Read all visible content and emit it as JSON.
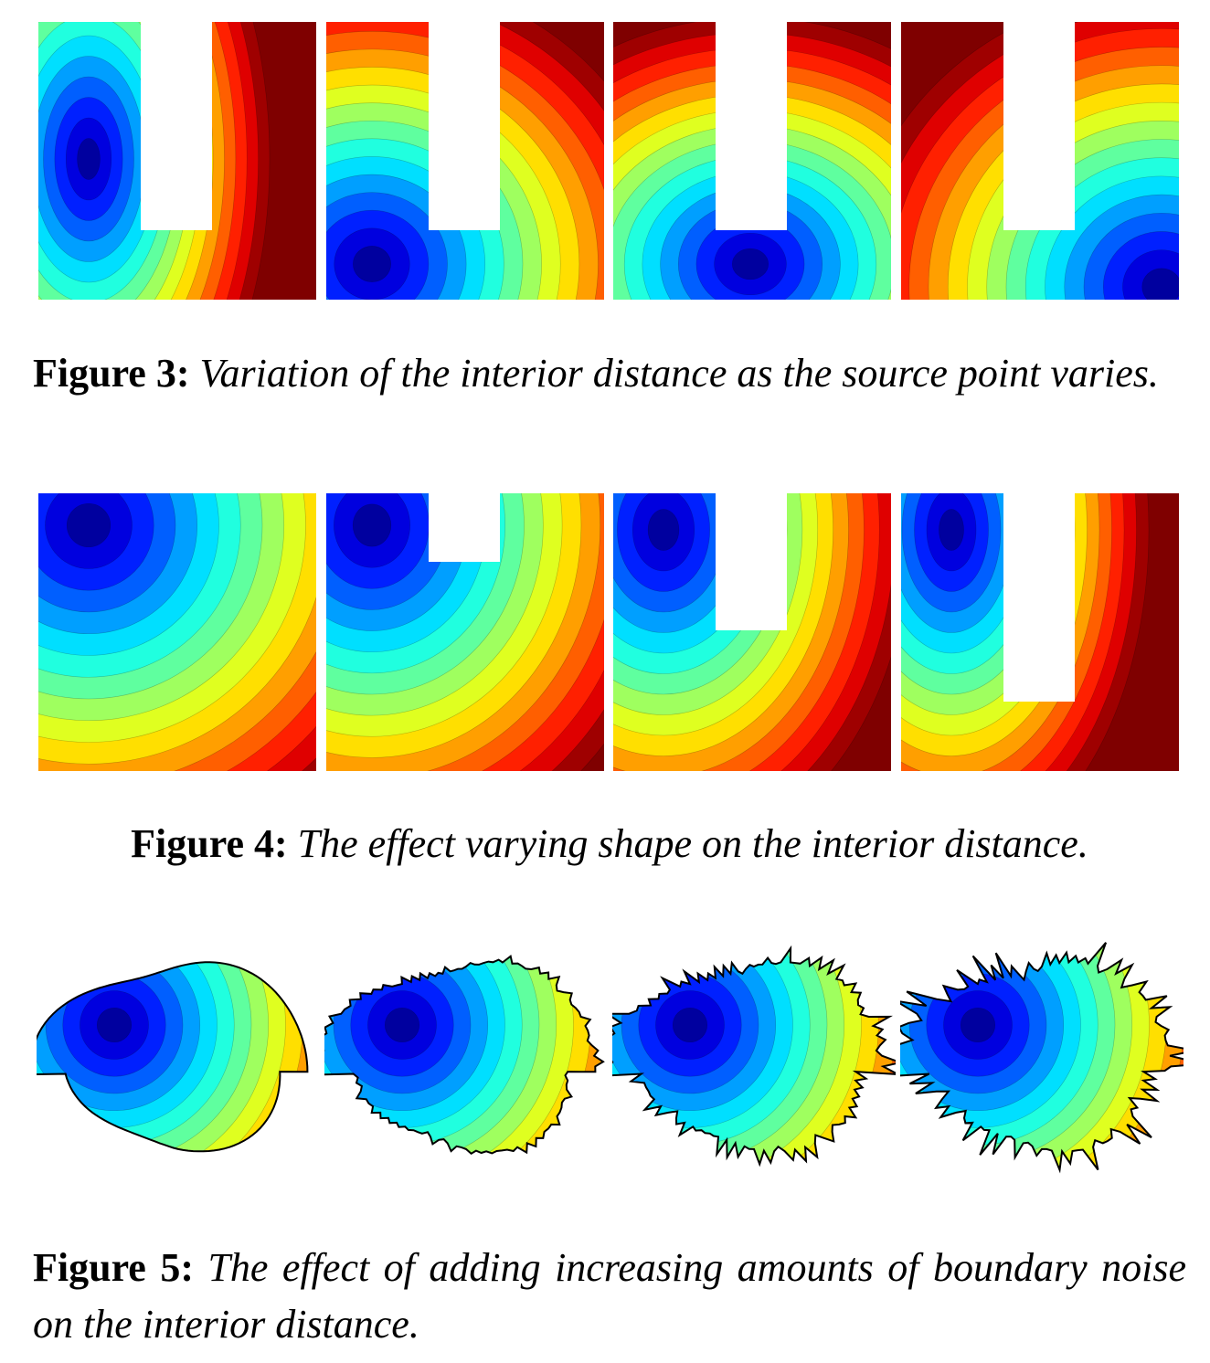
{
  "colormap": [
    "#00007f",
    "#0000ff",
    "#007fff",
    "#00ffff",
    "#7fff7f",
    "#ffff00",
    "#ff7f00",
    "#ff0000",
    "#7f0000"
  ],
  "figures": [
    {
      "label": "Figure 3:",
      "text": "Variation of the interior distance as the source point varies."
    },
    {
      "label": "Figure 4:",
      "text": "The effect varying shape on the interior distance."
    },
    {
      "label": "Figure 5:",
      "text": "The effect of adding increasing amounts of boundary noise on the interior distance."
    }
  ]
}
